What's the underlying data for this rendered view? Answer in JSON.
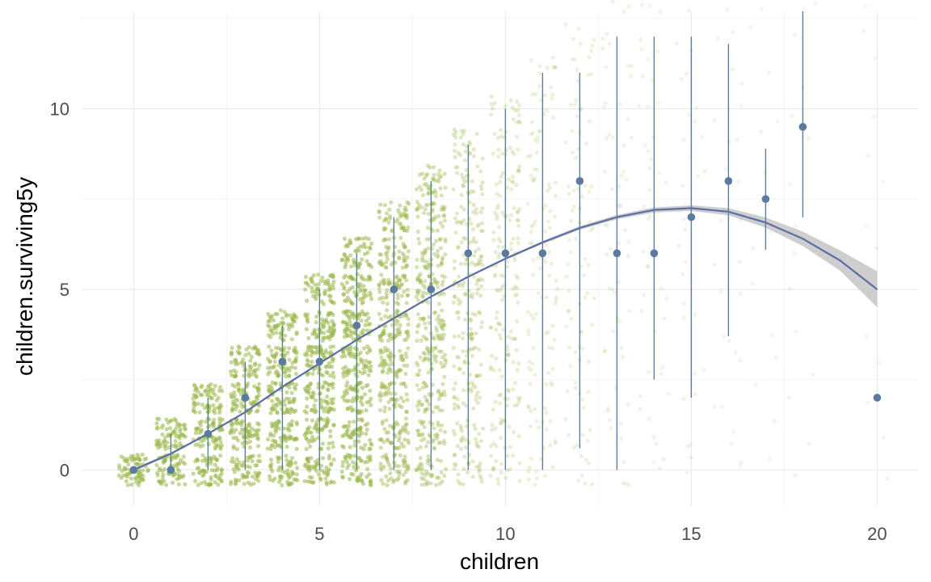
{
  "chart_data": {
    "type": "scatter",
    "xlabel": "children",
    "ylabel": "children.surviving5y",
    "xlim": [
      -1.4,
      21.1
    ],
    "ylim": [
      -1.0,
      12.7
    ],
    "x_ticks": [
      0,
      5,
      10,
      15,
      20
    ],
    "y_ticks": [
      0,
      5,
      10
    ],
    "grid": true,
    "colors": {
      "jitter_points": "#9ab84a",
      "summary_points": "#5a7aa0",
      "fit_line": "#5b6ea6",
      "confidence_band": "#bdbdbd",
      "grid_major": "#ebebeb",
      "grid_minor": "#f4f4f4"
    },
    "series": [
      {
        "kind": "jitter",
        "x_counts": [
          0,
          1,
          2,
          3,
          4,
          5,
          6,
          7,
          8,
          9,
          10,
          11,
          12,
          13,
          14,
          15,
          16,
          17,
          18,
          20
        ],
        "density_per_cell": [
          1.0,
          1.0,
          1.0,
          1.0,
          1.0,
          1.0,
          0.95,
          0.85,
          0.7,
          0.45,
          0.3,
          0.18,
          0.12,
          0.08,
          0.06,
          0.04,
          0.03,
          0.02,
          0.02,
          0.01
        ]
      },
      {
        "kind": "median_range",
        "points": [
          {
            "x": 0,
            "y": 0,
            "ymin": 0,
            "ymax": 0
          },
          {
            "x": 1,
            "y": 0,
            "ymin": 0,
            "ymax": 1
          },
          {
            "x": 2,
            "y": 1,
            "ymin": 0,
            "ymax": 2
          },
          {
            "x": 3,
            "y": 2,
            "ymin": 0,
            "ymax": 3
          },
          {
            "x": 4,
            "y": 3,
            "ymin": 0,
            "ymax": 4
          },
          {
            "x": 5,
            "y": 3,
            "ymin": 0,
            "ymax": 5
          },
          {
            "x": 6,
            "y": 4,
            "ymin": 0,
            "ymax": 6
          },
          {
            "x": 7,
            "y": 5,
            "ymin": 0,
            "ymax": 7
          },
          {
            "x": 8,
            "y": 5,
            "ymin": 0,
            "ymax": 8
          },
          {
            "x": 9,
            "y": 6,
            "ymin": 0,
            "ymax": 9
          },
          {
            "x": 10,
            "y": 6,
            "ymin": 0,
            "ymax": 10
          },
          {
            "x": 11,
            "y": 6,
            "ymin": 0,
            "ymax": 11
          },
          {
            "x": 12,
            "y": 8,
            "ymin": 0.6,
            "ymax": 11
          },
          {
            "x": 13,
            "y": 6,
            "ymin": 0,
            "ymax": 12
          },
          {
            "x": 14,
            "y": 6,
            "ymin": 2.5,
            "ymax": 12
          },
          {
            "x": 15,
            "y": 7,
            "ymin": 2,
            "ymax": 12
          },
          {
            "x": 16,
            "y": 8,
            "ymin": 3.7,
            "ymax": 11.8
          },
          {
            "x": 17,
            "y": 7.5,
            "ymin": 6.1,
            "ymax": 8.9
          },
          {
            "x": 18,
            "y": 9.5,
            "ymin": 7,
            "ymax": 13.8
          },
          {
            "x": 20,
            "y": 2,
            "ymin": 2,
            "ymax": 2
          }
        ]
      },
      {
        "kind": "smooth",
        "x": [
          0,
          1,
          2,
          3,
          4,
          5,
          6,
          7,
          8,
          9,
          10,
          11,
          12,
          13,
          14,
          15,
          16,
          17,
          18,
          19,
          20
        ],
        "y": [
          0,
          0.45,
          1.0,
          1.6,
          2.3,
          2.95,
          3.6,
          4.2,
          4.8,
          5.35,
          5.85,
          6.3,
          6.7,
          7.0,
          7.2,
          7.25,
          7.15,
          6.85,
          6.4,
          5.8,
          5.0
        ],
        "ci_half_width": [
          0.05,
          0.03,
          0.02,
          0.02,
          0.02,
          0.02,
          0.02,
          0.02,
          0.02,
          0.03,
          0.03,
          0.04,
          0.05,
          0.06,
          0.07,
          0.08,
          0.1,
          0.14,
          0.2,
          0.28,
          0.5
        ]
      }
    ]
  }
}
